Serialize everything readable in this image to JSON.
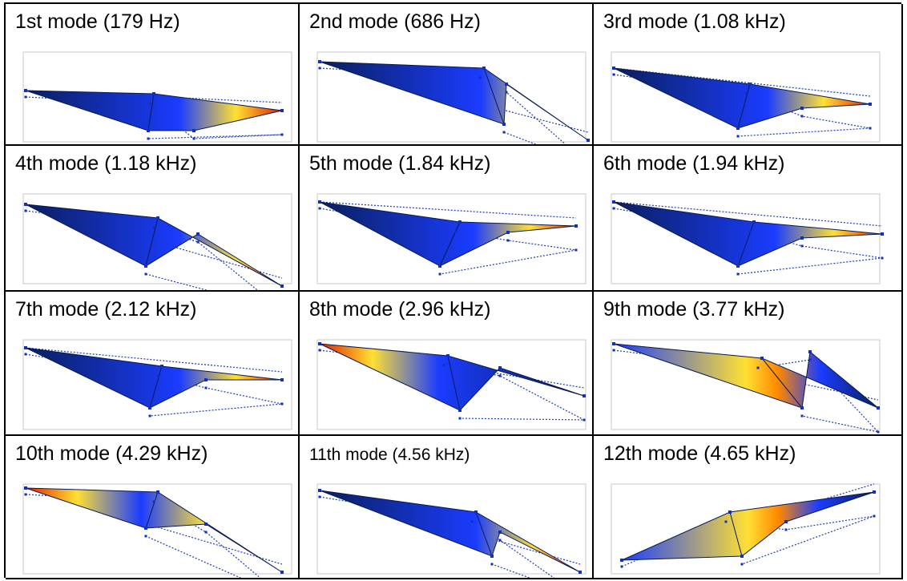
{
  "modes": [
    {
      "label": "1st mode (179 Hz)",
      "hot": 4,
      "pattern": "tip"
    },
    {
      "label": "2nd mode (686 Hz)",
      "hot": 5,
      "pattern": "tip"
    },
    {
      "label": "3rd mode (1.08 kHz)",
      "hot": 4,
      "pattern": "tip"
    },
    {
      "label": "4th mode (1.18 kHz)",
      "hot": 5,
      "pattern": "tip"
    },
    {
      "label": "5th mode (1.84 kHz)",
      "hot": 4,
      "pattern": "tip"
    },
    {
      "label": "6th mode (1.94 kHz)",
      "hot": 4,
      "pattern": "tip"
    },
    {
      "label": "7th mode (2.12 kHz)",
      "hot": 4,
      "pattern": "tip"
    },
    {
      "label": "8th mode (2.96 kHz)",
      "hot": 0,
      "pattern": "root"
    },
    {
      "label": "9th mode (3.77 kHz)",
      "hot": 3,
      "pattern": "middle"
    },
    {
      "label": "10th mode (4.29 kHz)",
      "hot": 0,
      "pattern": "both"
    },
    {
      "label": "11th mode (4.56 kHz)",
      "hot": 5,
      "pattern": "tip"
    },
    {
      "label": "12th mode (4.65 kHz)",
      "hot": 4,
      "pattern": "middle"
    }
  ],
  "colors": {
    "base": "#0a1f5c",
    "blue": "#1a3cff",
    "yellow": "#ffe033",
    "orange": "#ff8800",
    "red": "#e02000",
    "dotted": "#1e3cb4",
    "frame": "#c8c8c8"
  }
}
